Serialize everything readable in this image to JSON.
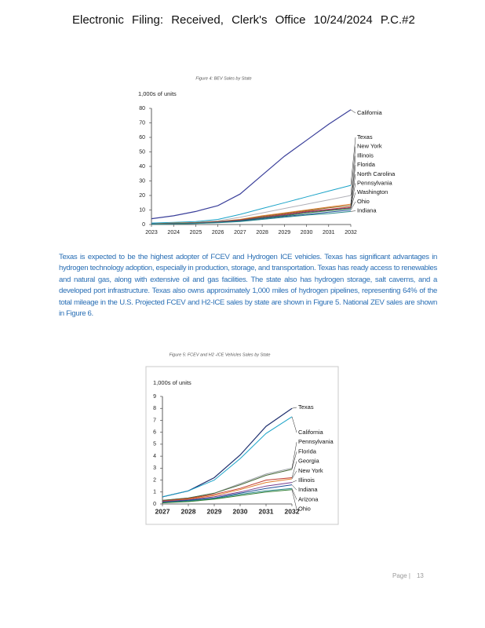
{
  "header": {
    "text": "Electronic Filing: Received, Clerk's Office 10/24/2024 P.C.#2"
  },
  "chart_data": [
    {
      "type": "line",
      "title": "Figure 4: BEV Sales by State",
      "y_label": "1,000s of units",
      "x": [
        2023,
        2024,
        2025,
        2026,
        2027,
        2028,
        2029,
        2030,
        2031,
        2032
      ],
      "xlim": [
        2023,
        2032
      ],
      "xticks": [
        2023,
        2024,
        2025,
        2026,
        2027,
        2028,
        2029,
        2030,
        2031,
        2032
      ],
      "ylim": [
        0,
        80
      ],
      "yticks": [
        0,
        10,
        20,
        30,
        40,
        50,
        60,
        70,
        80
      ],
      "series": [
        {
          "name": "California",
          "color": "#3a3f9a",
          "values": [
            4,
            6,
            9,
            13,
            21,
            34,
            47,
            58,
            69,
            79
          ]
        },
        {
          "name": "Texas",
          "color": "#1aa3c8",
          "values": [
            1,
            1.5,
            2,
            3.5,
            7,
            11,
            15,
            19,
            23,
            27
          ]
        },
        {
          "name": "New York",
          "color": "#b0b0b8",
          "values": [
            0.5,
            1,
            1.5,
            2.5,
            5,
            8,
            11,
            14,
            17,
            20
          ]
        },
        {
          "name": "Illinois",
          "color": "#e07b2a",
          "values": [
            0.5,
            1,
            1.3,
            2,
            3.5,
            6,
            8,
            10,
            12,
            14
          ]
        },
        {
          "name": "Florida",
          "color": "#8a6a2a",
          "values": [
            0.5,
            0.8,
            1.2,
            2,
            3.2,
            5.5,
            7.5,
            9.5,
            11.5,
            13
          ]
        },
        {
          "name": "North Carolina",
          "color": "#c0392b",
          "values": [
            0.4,
            0.7,
            1,
            1.8,
            3,
            5,
            7,
            9,
            10.5,
            12
          ]
        },
        {
          "name": "Pennsylvania",
          "color": "#7a3d8c",
          "values": [
            0.4,
            0.7,
            1,
            1.7,
            2.8,
            4.8,
            6.5,
            8.5,
            10,
            11.5
          ]
        },
        {
          "name": "Washington",
          "color": "#2e7d32",
          "values": [
            0.3,
            0.6,
            0.9,
            1.5,
            2.6,
            4.5,
            6,
            8,
            9.5,
            11
          ]
        },
        {
          "name": "Ohio",
          "color": "#1f4e9a",
          "values": [
            0.3,
            0.5,
            0.8,
            1.4,
            2.4,
            4,
            5.5,
            7,
            8.5,
            10
          ]
        },
        {
          "name": "Indiana",
          "color": "#2b8a8a",
          "values": [
            0.2,
            0.4,
            0.7,
            1.2,
            2,
            3.5,
            5,
            6.5,
            7.5,
            9
          ]
        }
      ]
    },
    {
      "type": "line",
      "title": "Figure 5: FCEV and H2 -ICE Vehicles Sales by State",
      "y_label": "1,000s of units",
      "x": [
        2027,
        2028,
        2029,
        2030,
        2031,
        2032
      ],
      "xlim": [
        2027,
        2032
      ],
      "xticks": [
        2027,
        2028,
        2029,
        2030,
        2031,
        2032
      ],
      "ylim": [
        0,
        9
      ],
      "yticks": [
        0,
        1,
        2,
        3,
        4,
        5,
        6,
        7,
        8,
        9
      ],
      "series": [
        {
          "name": "Texas",
          "color": "#1f2f6e",
          "values": [
            0.6,
            1.1,
            2.2,
            4.1,
            6.5,
            8
          ]
        },
        {
          "name": "California",
          "color": "#1aa3c8",
          "values": [
            0.6,
            1.1,
            2,
            3.8,
            5.9,
            7.3
          ]
        },
        {
          "name": "Pennsylvania",
          "color": "#9aa0a6",
          "values": [
            0.3,
            0.5,
            0.9,
            1.7,
            2.5,
            3
          ]
        },
        {
          "name": "Florida",
          "color": "#4a6a3a",
          "values": [
            0.3,
            0.5,
            0.9,
            1.6,
            2.4,
            2.9
          ]
        },
        {
          "name": "Georgia",
          "color": "#c0392b",
          "values": [
            0.25,
            0.45,
            0.8,
            1.3,
            2,
            2.2
          ]
        },
        {
          "name": "New York",
          "color": "#e07b2a",
          "values": [
            0.2,
            0.4,
            0.7,
            1.2,
            1.8,
            2.1
          ]
        },
        {
          "name": "Illinois",
          "color": "#7a3d8c",
          "values": [
            0.2,
            0.35,
            0.6,
            1,
            1.5,
            1.8
          ]
        },
        {
          "name": "Indiana",
          "color": "#1f4e9a",
          "values": [
            0.15,
            0.3,
            0.5,
            0.9,
            1.3,
            1.6
          ]
        },
        {
          "name": "Arizona",
          "color": "#2b8a8a",
          "values": [
            0.1,
            0.25,
            0.45,
            0.8,
            1.1,
            1.3
          ]
        },
        {
          "name": "Ohio",
          "color": "#2e7d32",
          "values": [
            0.1,
            0.2,
            0.4,
            0.7,
            1,
            1.2
          ]
        }
      ]
    }
  ],
  "paragraph": "Texas is expected to be the highest adopter of FCEV and Hydrogen ICE vehicles. Texas has significant advantages in hydrogen technology adoption, especially in production, storage, and transportation. Texas has ready access to renewables and natural gas, along with extensive oil and gas facilities. The state also has hydrogen storage, salt caverns, and a developed port infrastructure. Texas also owns approximately 1,000 miles of hydrogen pipelines, representing 64% of the total mileage in the U.S. Projected FCEV and H2-ICE sales by state are shown in Figure 5. National ZEV sales are shown in Figure 6.",
  "footer": {
    "label": "Page |",
    "number": "13"
  }
}
